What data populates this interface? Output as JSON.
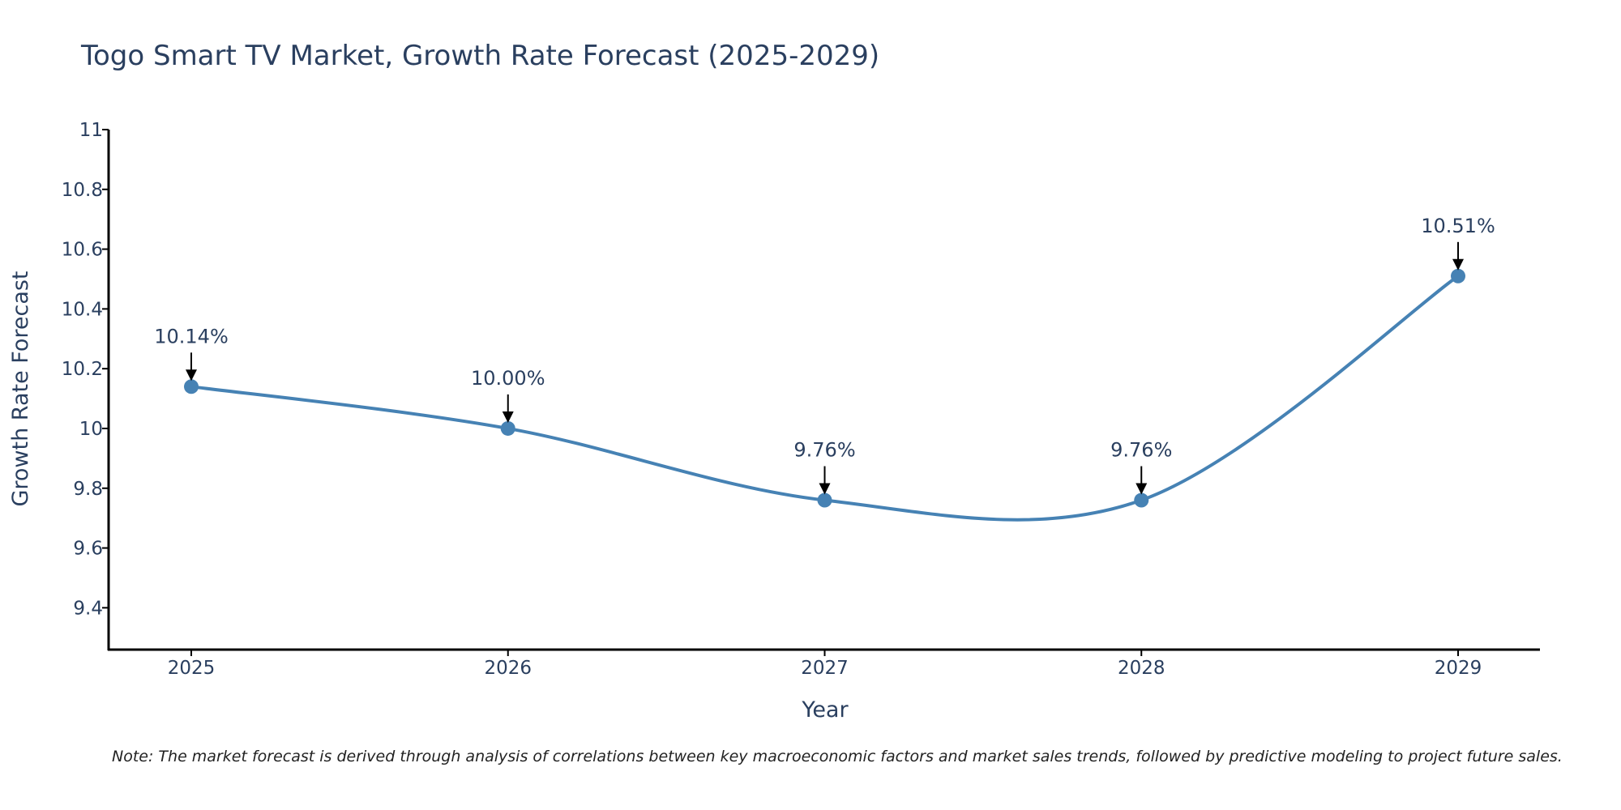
{
  "chart_data": {
    "type": "line",
    "title": "Togo Smart TV Market, Growth Rate Forecast (2025-2029)",
    "xlabel": "Year",
    "ylabel": "Growth Rate Forecast",
    "x": [
      "2025",
      "2026",
      "2027",
      "2028",
      "2029"
    ],
    "series": [
      {
        "name": "Growth Rate Forecast",
        "values": [
          10.14,
          10.0,
          9.76,
          9.76,
          10.51
        ]
      }
    ],
    "data_labels": [
      "10.14%",
      "10.00%",
      "9.76%",
      "9.76%",
      "10.51%"
    ],
    "ylim": [
      9.26,
      11.0
    ],
    "yticks": [
      9.4,
      9.6,
      9.8,
      10,
      10.2,
      10.4,
      10.6,
      10.8,
      11
    ],
    "ytick_labels": [
      "9.4",
      "9.6",
      "9.8",
      "10",
      "10.2",
      "10.4",
      "10.6",
      "10.8",
      "11"
    ],
    "grid": false,
    "line_color": "#4682b4",
    "marker_color": "#4682b4"
  },
  "note": "Note: The market forecast is derived through analysis of correlations between key macroeconomic factors and market sales trends, followed by predictive modeling to project future sales."
}
